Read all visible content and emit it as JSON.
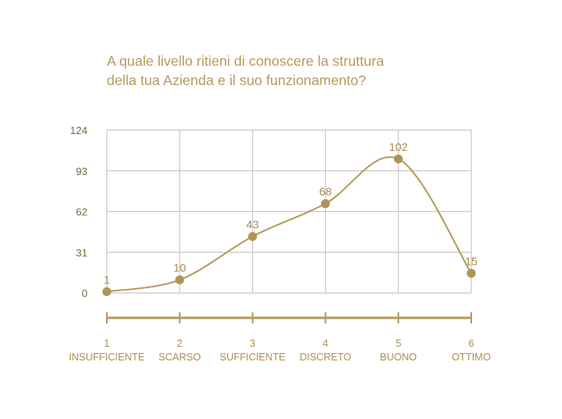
{
  "chart_data": {
    "type": "line",
    "title_lines": [
      "A quale livello ritieni di conoscere la struttura",
      "della tua Azienda e il suo funzionamento?"
    ],
    "x": [
      1,
      2,
      3,
      4,
      5,
      6
    ],
    "categories": [
      "INSUFFICIENTE",
      "SCARSO",
      "SUFFICIENTE",
      "DISCRETO",
      "BUONO",
      "OTTIMO"
    ],
    "values": [
      1,
      10,
      43,
      68,
      102,
      15
    ],
    "yticks": [
      0,
      31,
      62,
      93,
      124
    ],
    "ylim": [
      0,
      124
    ],
    "grid": true,
    "smooth": true,
    "line_color": "#b59a5e",
    "marker_color": "#b09356",
    "grid_color": "#c8c8c8"
  }
}
